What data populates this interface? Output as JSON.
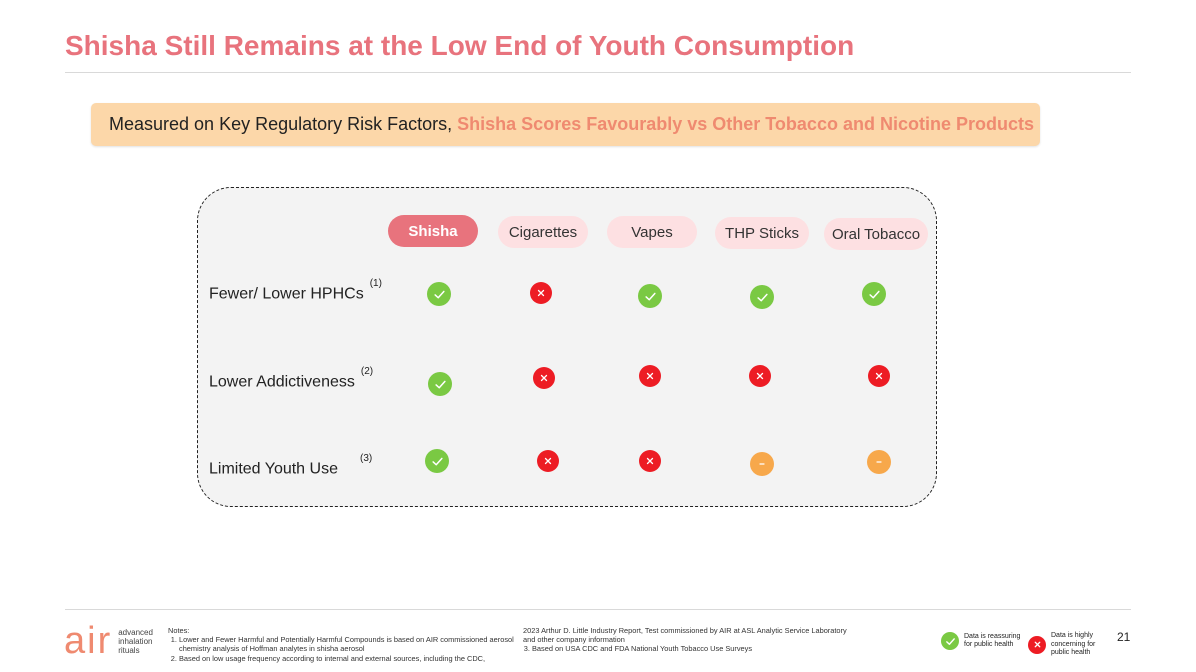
{
  "title": "Shisha Still Remains at the Low End of Youth Consumption",
  "banner": {
    "prefix": "Measured on Key Regulatory Risk Factors, ",
    "highlight": "Shisha Scores Favourably vs Other Tobacco and Nicotine Products"
  },
  "columns": [
    "Shisha",
    "Cigarettes",
    "Vapes",
    "THP Sticks",
    "Oral Tobacco"
  ],
  "rows": [
    {
      "label": "Fewer/ Lower HPHCs",
      "note": "(1)",
      "values": [
        "check",
        "cross",
        "check",
        "check",
        "check"
      ]
    },
    {
      "label": "Lower Addictiveness",
      "note": "(2)",
      "values": [
        "check",
        "cross",
        "cross",
        "cross",
        "cross"
      ]
    },
    {
      "label": "Limited Youth Use",
      "note": "(3)",
      "values": [
        "check",
        "cross",
        "cross",
        "dash",
        "dash"
      ]
    }
  ],
  "colors": {
    "title": "#e8737d",
    "banner_bg": "#fcd7a9",
    "highlight": "#ef8a70",
    "check": "#7ac943",
    "cross": "#ed1c24",
    "dash": "#f7a84b",
    "active_header": "#e8737d",
    "inactive_header": "#fde0e2"
  },
  "icons": {
    "check": "check-circle-icon",
    "cross": "cross-circle-icon",
    "dash": "dash-circle-icon"
  },
  "notes": {
    "heading": "Notes:",
    "items": [
      "Lower and Fewer Harmful and Potentially Harmful Compounds is based on AIR commissioned aerosol chemistry analysis of Hoffman analytes in shisha aerosol",
      "Based on low usage frequency according to internal and external sources, including the CDC,"
    ],
    "continued": "2023 Arthur D. Little Industry Report, Test commissioned by AIR at ASL Analytic Service Laboratory and other company information",
    "item3": "Based on USA CDC and FDA National Youth Tobacco Use Surveys"
  },
  "logo": {
    "brand": "air",
    "line1": "advanced",
    "line2": "inhalation",
    "line3": "rituals"
  },
  "legend": {
    "reassuring": "Data is reassuring for public health",
    "concerning": "Data is highly concerning for public health"
  },
  "page_number": "21"
}
